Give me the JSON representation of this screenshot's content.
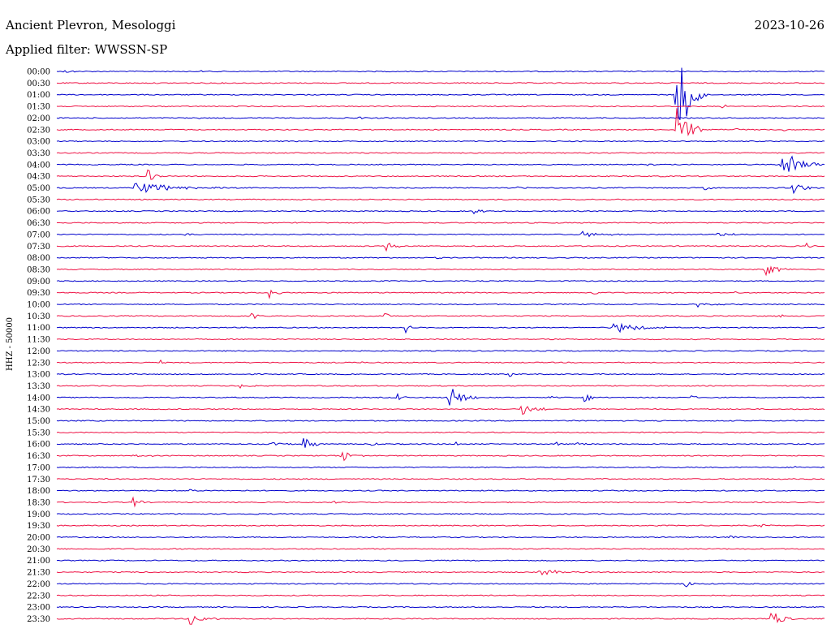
{
  "station": "Ancient Plevron, Mesologgi",
  "date": "2023-10-26",
  "filter_label": "Applied filter: WWSSN-SP",
  "channel_label": "HHZ - 50000",
  "colors": {
    "trace_a": "#0000cc",
    "trace_b": "#ee1144"
  },
  "chart_data": {
    "type": "line",
    "title": "",
    "xlabel": "",
    "ylabel": "HHZ - 50000",
    "row_minutes": 30,
    "row_labels": [
      "00:00",
      "00:30",
      "01:00",
      "01:30",
      "02:00",
      "02:30",
      "03:00",
      "03:30",
      "04:00",
      "04:30",
      "05:00",
      "05:30",
      "06:00",
      "06:30",
      "07:00",
      "07:30",
      "08:00",
      "08:30",
      "09:00",
      "09:30",
      "10:00",
      "10:30",
      "11:00",
      "11:30",
      "12:00",
      "12:30",
      "13:00",
      "13:30",
      "14:00",
      "14:30",
      "15:00",
      "15:30",
      "16:00",
      "16:30",
      "17:00",
      "17:30",
      "18:00",
      "18:30",
      "19:00",
      "19:30",
      "20:00",
      "20:30",
      "21:00",
      "21:30",
      "22:00",
      "22:30",
      "23:00",
      "23:30"
    ],
    "trace_colors": [
      "trace_a",
      "trace_b"
    ],
    "events": [
      {
        "row": 0,
        "minute": 0.3,
        "amp": 2,
        "len": 0.9
      },
      {
        "row": 0,
        "minute": 5.6,
        "amp": 2,
        "len": 0.3
      },
      {
        "row": 2,
        "minute": 24.2,
        "amp": 70,
        "len": 1.2
      },
      {
        "row": 3,
        "minute": 26.0,
        "amp": 3,
        "len": 0.4
      },
      {
        "row": 4,
        "minute": 5.4,
        "amp": 2,
        "len": 0.4
      },
      {
        "row": 4,
        "minute": 11.8,
        "amp": 6,
        "len": 0.15
      },
      {
        "row": 5,
        "minute": 24.2,
        "amp": 40,
        "len": 1.0
      },
      {
        "row": 5,
        "minute": 26.5,
        "amp": 3,
        "len": 0.4
      },
      {
        "row": 5,
        "minute": 28.4,
        "amp": 2,
        "len": 0.4
      },
      {
        "row": 8,
        "minute": 28.3,
        "amp": 20,
        "len": 1.6
      },
      {
        "row": 8,
        "minute": 23.0,
        "amp": 2,
        "len": 0.6
      },
      {
        "row": 9,
        "minute": 3.5,
        "amp": 12,
        "len": 0.6
      },
      {
        "row": 9,
        "minute": 23.6,
        "amp": 2,
        "len": 0.3
      },
      {
        "row": 10,
        "minute": 3.0,
        "amp": 8,
        "len": 3.8
      },
      {
        "row": 10,
        "minute": 18.0,
        "amp": 2,
        "len": 0.6
      },
      {
        "row": 10,
        "minute": 25.3,
        "amp": 6,
        "len": 0.4
      },
      {
        "row": 10,
        "minute": 28.7,
        "amp": 8,
        "len": 1.3
      },
      {
        "row": 12,
        "minute": 16.3,
        "amp": 7,
        "len": 0.5
      },
      {
        "row": 13,
        "minute": 9.2,
        "amp": 3,
        "len": 0.4
      },
      {
        "row": 14,
        "minute": 5.0,
        "amp": 2,
        "len": 0.9
      },
      {
        "row": 14,
        "minute": 20.5,
        "amp": 4,
        "len": 2.0
      },
      {
        "row": 14,
        "minute": 25.8,
        "amp": 2,
        "len": 2.2
      },
      {
        "row": 15,
        "minute": 12.8,
        "amp": 8,
        "len": 0.8
      },
      {
        "row": 15,
        "minute": 29.3,
        "amp": 5,
        "len": 0.5
      },
      {
        "row": 16,
        "minute": 14.8,
        "amp": 4,
        "len": 0.3
      },
      {
        "row": 17,
        "minute": 27.7,
        "amp": 9,
        "len": 1.0
      },
      {
        "row": 19,
        "minute": 8.3,
        "amp": 8,
        "len": 0.6
      },
      {
        "row": 19,
        "minute": 20.8,
        "amp": 9,
        "len": 0.5
      },
      {
        "row": 19,
        "minute": 26.5,
        "amp": 2,
        "len": 0.6
      },
      {
        "row": 20,
        "minute": 25.0,
        "amp": 5,
        "len": 1.1
      },
      {
        "row": 21,
        "minute": 7.6,
        "amp": 9,
        "len": 0.5
      },
      {
        "row": 21,
        "minute": 12.8,
        "amp": 6,
        "len": 0.3
      },
      {
        "row": 21,
        "minute": 28.1,
        "amp": 5,
        "len": 0.5
      },
      {
        "row": 22,
        "minute": 13.6,
        "amp": 9,
        "len": 0.4
      },
      {
        "row": 22,
        "minute": 21.7,
        "amp": 8,
        "len": 2.3
      },
      {
        "row": 23,
        "minute": 18.0,
        "amp": 1,
        "len": 0.8
      },
      {
        "row": 25,
        "minute": 4.0,
        "amp": 4,
        "len": 0.3
      },
      {
        "row": 25,
        "minute": 11.9,
        "amp": 2,
        "len": 0.3
      },
      {
        "row": 26,
        "minute": 17.6,
        "amp": 4,
        "len": 0.5
      },
      {
        "row": 27,
        "minute": 7.1,
        "amp": 4,
        "len": 0.8
      },
      {
        "row": 28,
        "minute": 13.3,
        "amp": 7,
        "len": 0.6
      },
      {
        "row": 28,
        "minute": 15.3,
        "amp": 17,
        "len": 1.3
      },
      {
        "row": 28,
        "minute": 19.2,
        "amp": 3,
        "len": 0.4
      },
      {
        "row": 28,
        "minute": 20.6,
        "amp": 9,
        "len": 0.6
      },
      {
        "row": 28,
        "minute": 24.7,
        "amp": 5,
        "len": 0.4
      },
      {
        "row": 29,
        "minute": 18.1,
        "amp": 9,
        "len": 1.3
      },
      {
        "row": 32,
        "minute": 8.4,
        "amp": 3,
        "len": 1.0
      },
      {
        "row": 32,
        "minute": 9.6,
        "amp": 13,
        "len": 0.8
      },
      {
        "row": 32,
        "minute": 12.3,
        "amp": 3,
        "len": 0.4
      },
      {
        "row": 32,
        "minute": 15.6,
        "amp": 3,
        "len": 0.3
      },
      {
        "row": 32,
        "minute": 19.5,
        "amp": 3,
        "len": 0.3
      },
      {
        "row": 32,
        "minute": 20.2,
        "amp": 9,
        "len": 0.5
      },
      {
        "row": 33,
        "minute": 3.0,
        "amp": 2,
        "len": 1.5
      },
      {
        "row": 33,
        "minute": 11.1,
        "amp": 9,
        "len": 0.9
      },
      {
        "row": 34,
        "minute": 28.8,
        "amp": 3,
        "len": 0.3
      },
      {
        "row": 36,
        "minute": 5.2,
        "amp": 2,
        "len": 0.7
      },
      {
        "row": 37,
        "minute": 3.0,
        "amp": 35,
        "len": 0.4
      },
      {
        "row": 37,
        "minute": 10.8,
        "amp": 3,
        "len": 0.4
      },
      {
        "row": 39,
        "minute": 27.5,
        "amp": 3,
        "len": 0.6
      },
      {
        "row": 40,
        "minute": 26.3,
        "amp": 3,
        "len": 0.4
      },
      {
        "row": 41,
        "minute": 19.1,
        "amp": 2,
        "len": 0.2
      },
      {
        "row": 43,
        "minute": 3.3,
        "amp": 3,
        "len": 0.4
      },
      {
        "row": 43,
        "minute": 18.8,
        "amp": 5,
        "len": 1.8
      },
      {
        "row": 44,
        "minute": 24.5,
        "amp": 8,
        "len": 0.5
      },
      {
        "row": 47,
        "minute": 5.2,
        "amp": 10,
        "len": 1.2
      },
      {
        "row": 47,
        "minute": 27.9,
        "amp": 10,
        "len": 1.3
      }
    ]
  }
}
